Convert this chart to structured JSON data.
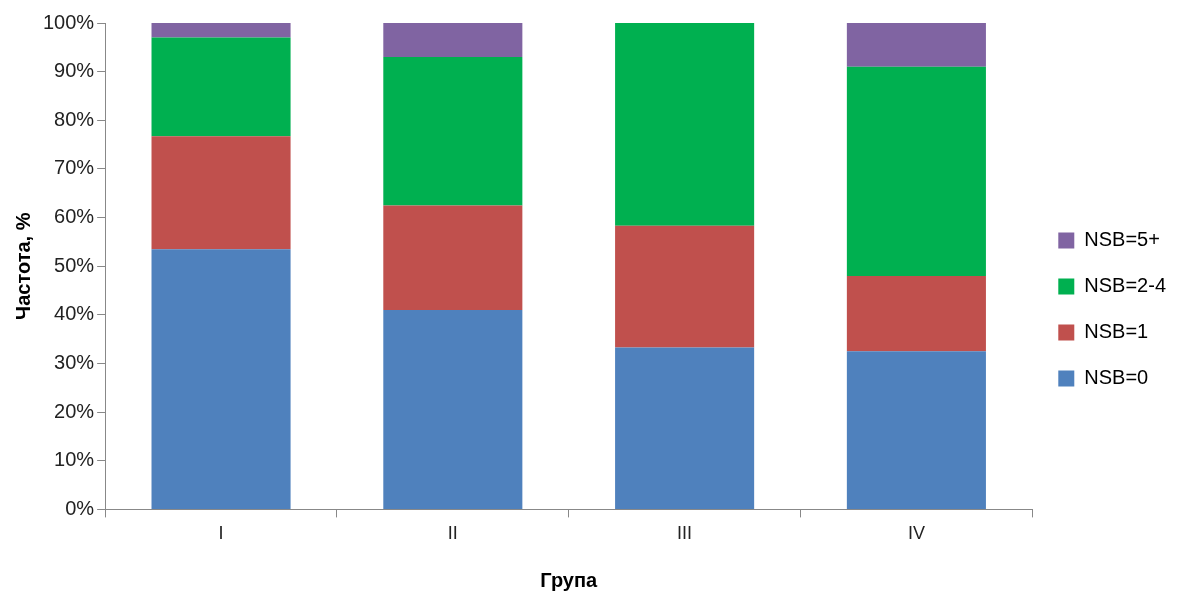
{
  "chart_data": {
    "type": "bar",
    "stacked": true,
    "xlabel": "Група",
    "ylabel": "Частота, %",
    "categories": [
      "I",
      "II",
      "III",
      "IV"
    ],
    "series": [
      {
        "name": "NSB=0",
        "color": "#4f81bd",
        "values": [
          53.5,
          41,
          33.3,
          32.5
        ]
      },
      {
        "name": "NSB=1",
        "color": "#c0504d",
        "values": [
          23.2,
          21.5,
          25,
          15.5
        ]
      },
      {
        "name": "NSB=2-4",
        "color": "#00b050",
        "values": [
          20.3,
          30.5,
          41.7,
          43
        ]
      },
      {
        "name": "NSB=5+",
        "color": "#8064a2",
        "values": [
          3,
          7,
          0,
          9
        ]
      }
    ],
    "ylim": [
      0,
      100
    ],
    "yticks": [
      {
        "value": 0,
        "label": "0%"
      },
      {
        "value": 10,
        "label": "10%"
      },
      {
        "value": 20,
        "label": "20%"
      },
      {
        "value": 30,
        "label": "30%"
      },
      {
        "value": 40,
        "label": "40%"
      },
      {
        "value": 50,
        "label": "50%"
      },
      {
        "value": 60,
        "label": "60%"
      },
      {
        "value": 70,
        "label": "70%"
      },
      {
        "value": 80,
        "label": "80%"
      },
      {
        "value": 90,
        "label": "90%"
      },
      {
        "value": 100,
        "label": "100%"
      }
    ],
    "grid": false,
    "legend": "right"
  }
}
